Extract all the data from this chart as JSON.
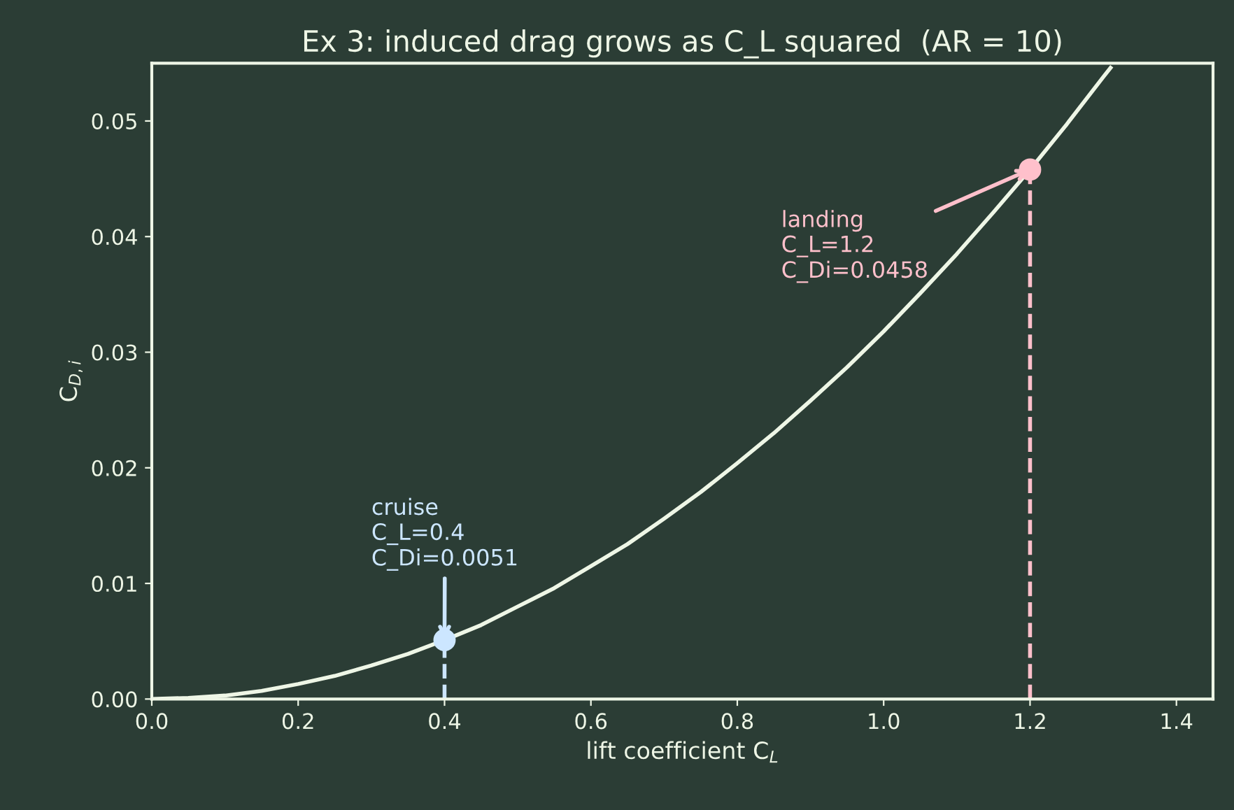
{
  "chart_data": {
    "type": "line",
    "title": "Ex 3: induced drag grows as C_L squared  (AR = 10)",
    "xlabel": "lift coefficient C$_{L}$",
    "ylabel": "C$_{D,i}$",
    "xlim": [
      0,
      1.45
    ],
    "xticks": [
      {
        "value": 0,
        "label": "0.0"
      },
      {
        "value": 0.2,
        "label": "0.2"
      },
      {
        "value": 0.4,
        "label": "0.4"
      },
      {
        "value": 0.6,
        "label": "0.6"
      },
      {
        "value": 0.8,
        "label": "0.8"
      },
      {
        "value": 1.0,
        "label": "1.0"
      },
      {
        "value": 1.2,
        "label": "1.2"
      },
      {
        "value": 1.4,
        "label": "1.4"
      }
    ],
    "ylim": [
      0,
      0.055
    ],
    "yticks": [
      {
        "value": 0,
        "label": "0.00"
      },
      {
        "value": 0.01,
        "label": "0.01"
      },
      {
        "value": 0.02,
        "label": "0.02"
      },
      {
        "value": 0.03,
        "label": "0.03"
      },
      {
        "value": 0.04,
        "label": "0.04"
      },
      {
        "value": 0.05,
        "label": "0.05"
      }
    ],
    "grid": false,
    "legend": false,
    "series": [
      {
        "color": "#eef6e6",
        "marker": "none",
        "line_style": "solid",
        "x": [
          0,
          0.05,
          0.1,
          0.15,
          0.2,
          0.25,
          0.3,
          0.35,
          0.4,
          0.45,
          0.5,
          0.55,
          0.6,
          0.65,
          0.7,
          0.75,
          0.8,
          0.85,
          0.9,
          0.95,
          1.0,
          1.05,
          1.1,
          1.15,
          1.2,
          1.25,
          1.3,
          1.31
        ],
        "values": [
          0,
          0.0001,
          0.0003,
          0.0007,
          0.0013,
          0.002,
          0.0029,
          0.0039,
          0.0051,
          0.0064,
          0.008,
          0.0096,
          0.0115,
          0.0134,
          0.0156,
          0.0179,
          0.0204,
          0.023,
          0.0258,
          0.0287,
          0.0318,
          0.0351,
          0.0385,
          0.0421,
          0.0458,
          0.0497,
          0.0538,
          0.0546
        ]
      },
      {
        "color": "#cce6ff",
        "marker": "none",
        "line_style": "dashed",
        "x": [
          0.4,
          0.4
        ],
        "values": [
          0,
          0.0051
        ]
      },
      {
        "color": "#ffc0cb",
        "marker": "none",
        "line_style": "dashed",
        "x": [
          1.2,
          1.2
        ],
        "values": [
          0,
          0.0458
        ]
      },
      {
        "type": "scatter",
        "color": "#cce6ff",
        "marker": "circle",
        "x": [
          0.4
        ],
        "values": [
          0.0051
        ]
      },
      {
        "type": "scatter",
        "color": "#ffc0cb",
        "marker": "circle",
        "x": [
          1.2
        ],
        "values": [
          0.0458
        ]
      }
    ],
    "annotations": [
      {
        "text": "cruise\nC_L=0.4\nC_Di=0.0051",
        "x": 0.4,
        "y": 0.0051
      },
      {
        "text": "landing\nC_L=1.2\nC_Di=0.0458",
        "x": 1.2,
        "y": 0.0458
      }
    ]
  }
}
